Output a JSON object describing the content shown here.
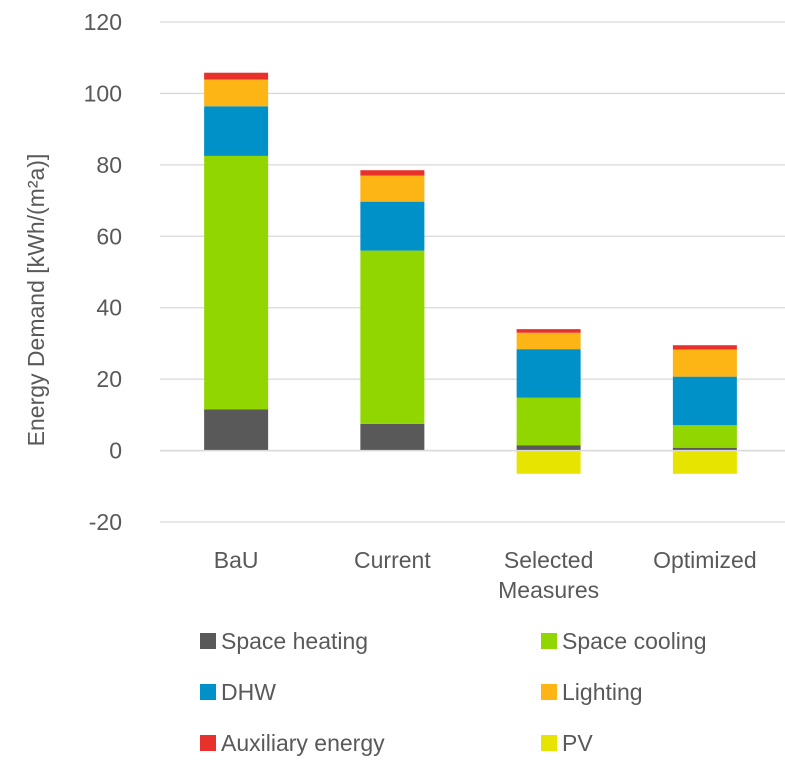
{
  "chart_data": {
    "type": "bar",
    "stacked": true,
    "categories": [
      [
        "BaU"
      ],
      [
        "Current"
      ],
      [
        "Selected",
        "Measures"
      ],
      [
        "Optimized"
      ]
    ],
    "ylabel": "Energy Demand [kWh/(m²a)]",
    "ylim": [
      -20,
      120
    ],
    "yticks": [
      -20,
      0,
      20,
      40,
      60,
      80,
      100,
      120
    ],
    "grid": true,
    "legend": "bottom",
    "series": [
      {
        "name": "Space heating",
        "color": "#595959",
        "values": [
          11.5,
          7.5,
          1.5,
          0.8
        ]
      },
      {
        "name": "Space cooling",
        "color": "#92d600",
        "values": [
          71,
          48.5,
          13.3,
          6.3
        ]
      },
      {
        "name": "DHW",
        "color": "#0091c9",
        "values": [
          13.9,
          13.7,
          13.6,
          13.6
        ]
      },
      {
        "name": "Lighting",
        "color": "#fdb515",
        "values": [
          7.5,
          7.3,
          4.6,
          7.6
        ]
      },
      {
        "name": "Auxiliary energy",
        "color": "#e8312b",
        "values": [
          1.9,
          1.5,
          1.0,
          1.2
        ]
      },
      {
        "name": "PV",
        "color": "#e7e500",
        "values": [
          0,
          0,
          -6.5,
          -6.5
        ]
      }
    ]
  }
}
